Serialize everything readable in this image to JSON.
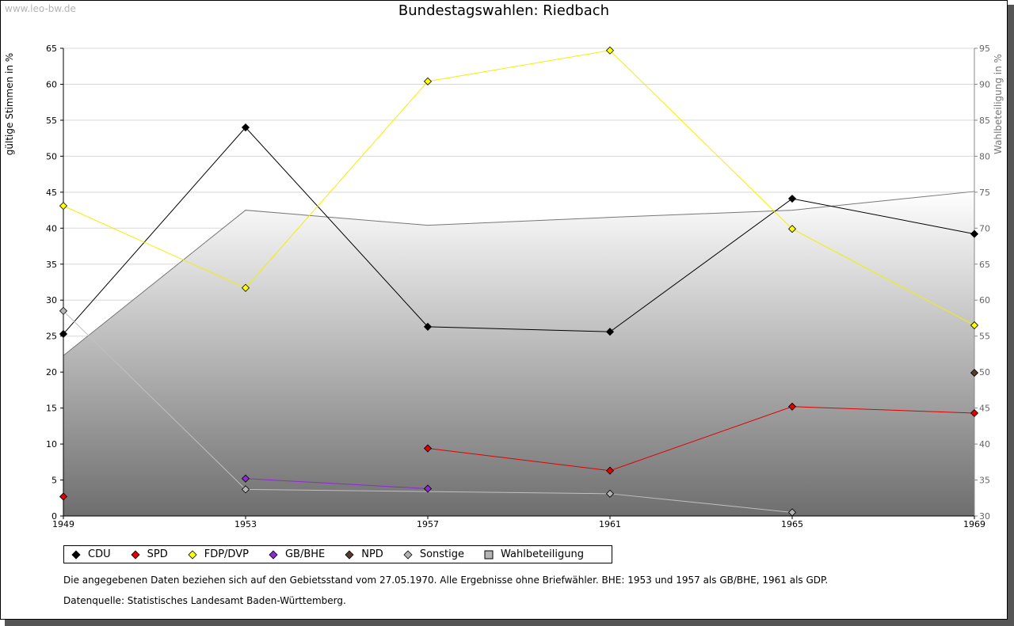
{
  "watermark": "www.leo-bw.de",
  "title": "Bundestagswahlen: Riedbach",
  "chart_data": {
    "type": "line",
    "title": "Bundestagswahlen: Riedbach",
    "x": [
      1949,
      1953,
      1957,
      1961,
      1965,
      1969
    ],
    "xlabel": "",
    "ylabel": "gültige Stimmen in %",
    "y2label": "Wahlbeteiligung in %",
    "ylim": [
      0,
      65
    ],
    "y2lim": [
      30,
      95
    ],
    "yticks": [
      0,
      5,
      10,
      15,
      20,
      25,
      30,
      35,
      40,
      45,
      50,
      55,
      60,
      65
    ],
    "y2ticks": [
      30,
      35,
      40,
      45,
      50,
      55,
      60,
      65,
      70,
      75,
      80,
      85,
      90,
      95
    ],
    "grid": true,
    "series": [
      {
        "name": "CDU",
        "color": "#000000",
        "values": [
          25.3,
          54.0,
          26.3,
          25.6,
          44.1,
          39.2
        ]
      },
      {
        "name": "SPD",
        "color": "#e00000",
        "values": [
          2.7,
          null,
          9.4,
          6.3,
          15.2,
          14.3
        ]
      },
      {
        "name": "FDP/DVP",
        "color": "#ffff00",
        "values": [
          43.1,
          31.7,
          60.4,
          64.7,
          39.9,
          26.5
        ]
      },
      {
        "name": "GB/BHE",
        "color": "#8e2bd0",
        "values": [
          null,
          5.2,
          3.8,
          null,
          null,
          null
        ]
      },
      {
        "name": "NPD",
        "color": "#5a3a2a",
        "values": [
          null,
          null,
          null,
          null,
          null,
          19.9
        ]
      },
      {
        "name": "Sonstige",
        "color": "#b4b4b4",
        "values": [
          28.5,
          3.7,
          null,
          3.1,
          0.5,
          null
        ]
      },
      {
        "name": "Wahlbeteiligung",
        "color": "#888888",
        "axis": "right",
        "type": "area",
        "values": [
          52.3,
          72.5,
          70.4,
          71.5,
          72.5,
          75.1
        ]
      }
    ],
    "sonstige_line_extra": {
      "year": 1957,
      "value": 3.4
    }
  },
  "legend": [
    {
      "label": "CDU",
      "color": "#000000",
      "shape": "diamond"
    },
    {
      "label": "SPD",
      "color": "#e00000",
      "shape": "diamond"
    },
    {
      "label": "FDP/DVP",
      "color": "#ffff00",
      "shape": "diamond"
    },
    {
      "label": "GB/BHE",
      "color": "#8e2bd0",
      "shape": "diamond"
    },
    {
      "label": "NPD",
      "color": "#5a3a2a",
      "shape": "diamond"
    },
    {
      "label": "Sonstige",
      "color": "#b4b4b4",
      "shape": "diamond"
    },
    {
      "label": "Wahlbeteiligung",
      "color": "#b4b4b4",
      "shape": "square"
    }
  ],
  "notes": {
    "line1": "Die angegebenen Daten beziehen sich auf den Gebietsstand vom 27.05.1970. Alle Ergebnisse ohne Briefwähler. BHE: 1953 und 1957 als GB/BHE, 1961 als GDP.",
    "line2": "Datenquelle: Statistisches Landesamt Baden-Württemberg."
  }
}
